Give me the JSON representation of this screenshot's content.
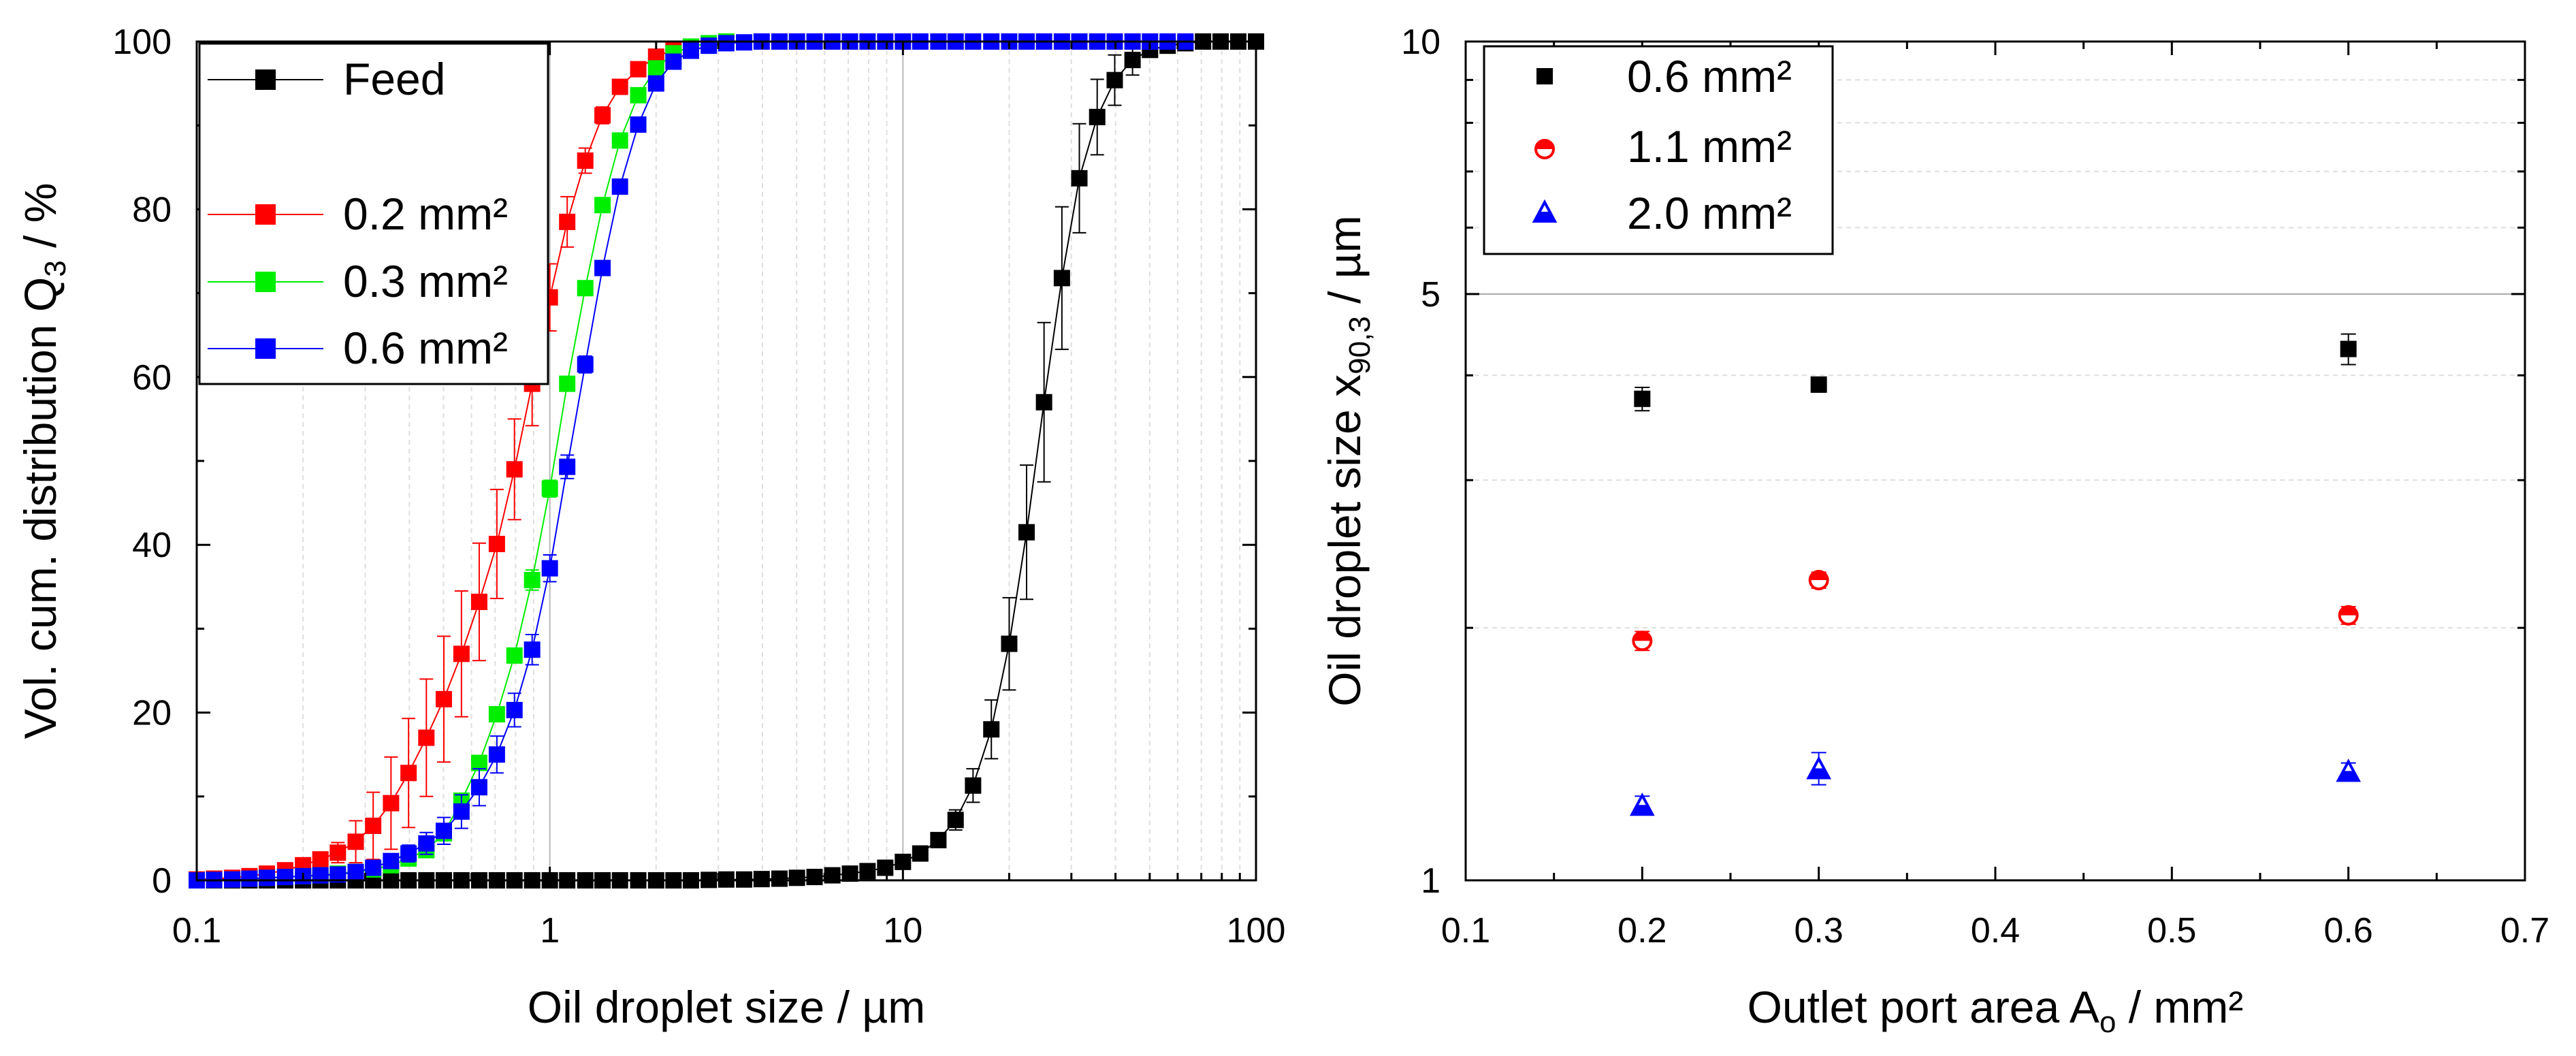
{
  "chart_data": [
    {
      "type": "line",
      "title": "",
      "xlabel": "Oil droplet size / µm",
      "ylabel_main": "Vol. cum. distribution Q",
      "ylabel_sub": "3",
      "ylabel_suffix": " / %",
      "xscale": "log",
      "xlim": [
        0.1,
        100
      ],
      "ylim": [
        0,
        100
      ],
      "xticks": [
        {
          "value": 0.1,
          "label": "0.1"
        },
        {
          "value": 1,
          "label": "1"
        },
        {
          "value": 10,
          "label": "10"
        },
        {
          "value": 100,
          "label": "100"
        }
      ],
      "yticks": [
        {
          "value": 0,
          "label": "0"
        },
        {
          "value": 20,
          "label": "20"
        },
        {
          "value": 40,
          "label": "40"
        },
        {
          "value": 60,
          "label": "60"
        },
        {
          "value": 80,
          "label": "80"
        },
        {
          "value": 100,
          "label": "100"
        }
      ],
      "grid": "vertical, log minor",
      "legend_position": "top-left",
      "series": [
        {
          "name": "Feed",
          "color": "#000000",
          "marker": "square",
          "x": [
            0.1,
            0.112,
            0.126,
            0.141,
            0.158,
            0.178,
            0.2,
            0.224,
            0.251,
            0.282,
            0.316,
            0.355,
            0.398,
            0.447,
            0.501,
            0.562,
            0.631,
            0.708,
            0.794,
            0.891,
            1.0,
            1.12,
            1.26,
            1.41,
            1.58,
            1.78,
            2.0,
            2.24,
            2.51,
            2.82,
            3.16,
            3.55,
            3.98,
            4.47,
            5.01,
            5.62,
            6.31,
            7.08,
            7.94,
            8.91,
            10.0,
            11.2,
            12.6,
            14.1,
            15.8,
            17.8,
            20.0,
            22.4,
            25.1,
            28.2,
            31.6,
            35.5,
            39.8,
            44.7,
            50.1,
            56.2,
            63.1,
            70.8,
            79.4,
            89.1,
            100
          ],
          "y": [
            0,
            0,
            0,
            0,
            0,
            0,
            0,
            0,
            0,
            0,
            0,
            0,
            0,
            0,
            0,
            0,
            0,
            0,
            0,
            0,
            0,
            0,
            0,
            0,
            0,
            0,
            0,
            0,
            0,
            0.05,
            0.1,
            0.1,
            0.15,
            0.2,
            0.3,
            0.4,
            0.6,
            0.8,
            1.1,
            1.5,
            2.2,
            3.2,
            4.8,
            7.2,
            11.3,
            18.0,
            28.2,
            41.5,
            57.0,
            71.8,
            83.7,
            91.0,
            95.4,
            97.8,
            99.0,
            99.5,
            99.8,
            100,
            100,
            100,
            100
          ],
          "err": [
            0,
            0,
            0,
            0,
            0,
            0,
            0,
            0,
            0,
            0,
            0,
            0,
            0,
            0,
            0,
            0,
            0,
            0,
            0,
            0,
            0,
            0,
            0,
            0,
            0,
            0,
            0,
            0,
            0,
            0,
            0,
            0,
            0,
            0,
            0,
            0,
            0,
            0,
            0,
            0,
            0.3,
            0.5,
            0.8,
            1.2,
            2.0,
            3.5,
            5.5,
            8.0,
            9.5,
            8.5,
            6.5,
            4.5,
            3.0,
            1.8,
            0.8,
            0.4,
            0,
            0,
            0,
            0,
            0
          ]
        },
        {
          "name": "0.2 mm²",
          "color": "#ff0000",
          "marker": "square",
          "x": [
            0.1,
            0.112,
            0.126,
            0.141,
            0.158,
            0.178,
            0.2,
            0.224,
            0.251,
            0.282,
            0.316,
            0.355,
            0.398,
            0.447,
            0.501,
            0.562,
            0.631,
            0.708,
            0.794,
            0.891,
            1.0,
            1.12,
            1.26,
            1.41,
            1.58,
            1.78,
            2.0,
            2.24
          ],
          "y": [
            0.1,
            0.2,
            0.3,
            0.5,
            0.8,
            1.2,
            1.8,
            2.5,
            3.3,
            4.6,
            6.5,
            9.2,
            12.8,
            17.0,
            21.6,
            27.0,
            33.2,
            40.1,
            49.0,
            59.2,
            69.5,
            78.5,
            85.8,
            91.2,
            94.6,
            96.7,
            98.2,
            99.0
          ],
          "err": [
            0,
            0,
            0,
            0.2,
            0.3,
            0.4,
            0.6,
            0.8,
            1.2,
            2.5,
            4.0,
            5.5,
            6.5,
            7.0,
            7.5,
            7.5,
            7.0,
            6.5,
            6.0,
            5.0,
            4.0,
            3.0,
            1.5,
            1.0,
            0.5,
            0.3,
            0.2,
            0.1
          ]
        },
        {
          "name": "0.3 mm²",
          "color": "#00ee00",
          "marker": "square",
          "x": [
            0.1,
            0.112,
            0.126,
            0.141,
            0.158,
            0.178,
            0.2,
            0.224,
            0.251,
            0.282,
            0.316,
            0.355,
            0.398,
            0.447,
            0.501,
            0.562,
            0.631,
            0.708,
            0.794,
            0.891,
            1.0,
            1.12,
            1.26,
            1.41,
            1.58,
            1.78,
            2.0,
            2.24,
            2.51,
            2.82,
            3.16
          ],
          "y": [
            0,
            0.05,
            0.1,
            0.2,
            0.3,
            0.4,
            0.5,
            0.6,
            0.8,
            1.0,
            1.3,
            1.8,
            2.6,
            3.6,
            5.6,
            9.5,
            14.0,
            19.8,
            26.8,
            35.8,
            46.7,
            59.2,
            70.6,
            80.5,
            88.2,
            93.6,
            96.8,
            98.6,
            99.4,
            99.8,
            100
          ],
          "err": [
            0,
            0,
            0,
            0,
            0,
            0,
            0,
            0,
            0,
            0,
            0,
            0,
            0,
            0,
            0,
            0,
            0,
            0,
            0,
            1.2,
            1.0,
            0.8,
            0.6,
            0.5,
            0.4,
            0.3,
            0.2,
            0,
            0,
            0,
            0
          ]
        },
        {
          "name": "0.6 mm²",
          "color": "#0000ff",
          "marker": "square",
          "x": [
            0.1,
            0.112,
            0.126,
            0.141,
            0.158,
            0.178,
            0.2,
            0.224,
            0.251,
            0.282,
            0.316,
            0.355,
            0.398,
            0.447,
            0.501,
            0.562,
            0.631,
            0.708,
            0.794,
            0.891,
            1.0,
            1.12,
            1.26,
            1.41,
            1.58,
            1.78,
            2.0,
            2.24,
            2.51,
            2.82,
            3.16,
            3.55,
            3.98,
            4.47,
            5.01,
            5.62,
            6.31,
            7.08,
            7.94,
            8.91,
            10.0,
            11.2,
            12.6,
            14.1,
            15.8,
            17.8,
            20.0,
            22.4,
            25.1,
            28.2,
            31.6,
            35.5,
            39.8,
            44.7,
            50.1,
            56.2,
            63.1
          ],
          "y": [
            0,
            0.05,
            0.1,
            0.2,
            0.3,
            0.4,
            0.5,
            0.6,
            0.7,
            1.0,
            1.5,
            2.3,
            3.2,
            4.4,
            5.9,
            8.2,
            11.1,
            15.0,
            20.3,
            27.5,
            37.2,
            49.3,
            61.5,
            73.0,
            82.7,
            90.1,
            95.0,
            97.6,
            98.9,
            99.5,
            99.8,
            99.9,
            100,
            100,
            100,
            100,
            100,
            100,
            100,
            100,
            100,
            100,
            100,
            100,
            100,
            100,
            100,
            100,
            100,
            100,
            100,
            100,
            100,
            100,
            100,
            100,
            100
          ],
          "err": [
            0,
            0,
            0,
            0,
            0,
            0,
            0,
            0,
            0,
            0,
            0.6,
            0.8,
            1.0,
            1.3,
            1.6,
            2.0,
            2.2,
            2.2,
            2.0,
            1.8,
            1.6,
            1.4,
            1.0,
            0.6,
            0.3,
            0.1,
            0,
            0,
            0,
            0,
            0,
            0,
            0,
            0,
            0,
            0,
            0,
            0,
            0,
            0,
            0,
            0,
            0,
            0,
            0,
            0,
            0,
            0,
            0,
            0,
            0,
            0,
            0,
            0,
            0,
            0,
            0
          ]
        }
      ]
    },
    {
      "type": "scatter",
      "title": "",
      "xlabel_main": "Outlet port area A",
      "xlabel_sub": "o",
      "xlabel_suffix": " / mm²",
      "ylabel_main": "Oil droplet size x",
      "ylabel_sub": "90,3",
      "ylabel_suffix": " / µm",
      "yscale": "log",
      "xlim": [
        0.1,
        0.7
      ],
      "ylim": [
        1,
        10
      ],
      "xticks": [
        {
          "value": 0.1,
          "label": "0.1"
        },
        {
          "value": 0.2,
          "label": "0.2"
        },
        {
          "value": 0.3,
          "label": "0.3"
        },
        {
          "value": 0.4,
          "label": "0.4"
        },
        {
          "value": 0.5,
          "label": "0.5"
        },
        {
          "value": 0.6,
          "label": "0.6"
        },
        {
          "value": 0.7,
          "label": "0.7"
        }
      ],
      "yticks": [
        {
          "value": 1,
          "label": "1"
        },
        {
          "value": 5,
          "label": "5"
        },
        {
          "value": 10,
          "label": "10"
        }
      ],
      "grid": "horizontal, log minor",
      "legend_position": "top-left",
      "series": [
        {
          "name": "0.6 mm²",
          "color": "#000000",
          "marker": "square",
          "x": [
            0.2,
            0.3,
            0.6
          ],
          "y": [
            3.75,
            3.9,
            4.3
          ],
          "err": [
            0.12,
            0.08,
            0.18
          ]
        },
        {
          "name": "1.1 mm²",
          "color": "#ff0000",
          "marker": "half-circle",
          "x": [
            0.2,
            0.3,
            0.6
          ],
          "y": [
            1.93,
            2.28,
            2.07
          ],
          "err": [
            0.05,
            0.05,
            0.05
          ]
        },
        {
          "name": "2.0 mm²",
          "color": "#0000ff",
          "marker": "half-triangle",
          "x": [
            0.2,
            0.3,
            0.6
          ],
          "y": [
            1.23,
            1.36,
            1.35
          ],
          "err": [
            0.03,
            0.06,
            0.03
          ]
        }
      ]
    }
  ]
}
